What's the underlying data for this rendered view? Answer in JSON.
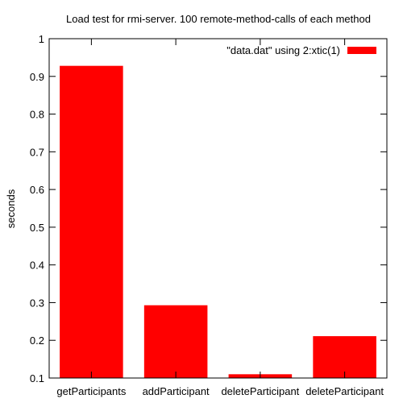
{
  "chart_data": {
    "type": "bar",
    "title": "Load test for rmi-server. 100 remote-method-calls of each method",
    "xlabel": "",
    "ylabel": "seconds",
    "categories": [
      "getParticipants",
      "addParticipant",
      "deleteParticipant",
      "deleteParticipant"
    ],
    "series": [
      {
        "name": "\"data.dat\" using 2:xtic(1)",
        "values": [
          0.928,
          0.293,
          0.11,
          0.211
        ],
        "color": "#ff0000"
      }
    ],
    "ylim": [
      0.1,
      1
    ],
    "yticks": [
      "0.1",
      "0.2",
      "0.3",
      "0.4",
      "0.5",
      "0.6",
      "0.7",
      "0.8",
      "0.9",
      "1"
    ],
    "grid": false,
    "legend_position": "top-right"
  }
}
